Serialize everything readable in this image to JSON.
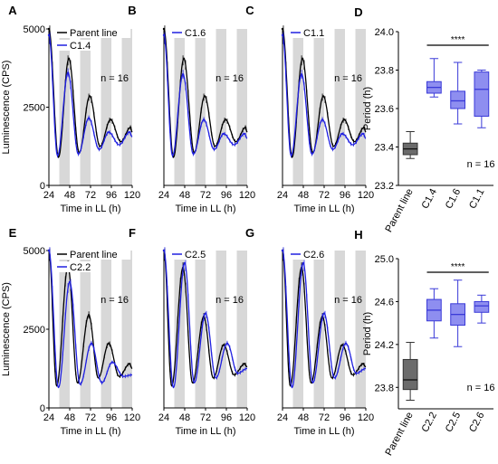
{
  "figure": {
    "colors": {
      "parent": "#000000",
      "clone": "#2020e0",
      "shade": "#d8d8d8",
      "box_gray": "#6b6b6b",
      "box_blue": "#8e8ef0",
      "box_blue_edge": "#3a3ad8"
    }
  },
  "chart_data": [
    {
      "type": "line",
      "panel": "A",
      "xlabel": "Time in LL (h)",
      "ylabel": "Luminescence (CPS)",
      "xlim": [
        24,
        120
      ],
      "ylim": [
        0,
        5000
      ],
      "xticks": [
        24,
        48,
        72,
        96,
        120
      ],
      "yticks": [
        0,
        2500,
        5000
      ],
      "legend": [
        "Parent line",
        "C1.4"
      ],
      "annotation": "n = 16",
      "series": [
        {
          "name": "Parent line",
          "peaks": [
            [
              24,
              5000
            ],
            [
              47,
              4050
            ],
            [
              71,
              2850
            ],
            [
              95,
              2100
            ],
            [
              118,
              1850
            ]
          ],
          "troughs": [
            [
              35,
              900
            ],
            [
              59,
              1050
            ],
            [
              83,
              1250
            ],
            [
              107,
              1400
            ]
          ],
          "end": [
            120,
            1700
          ]
        },
        {
          "name": "C1.4",
          "peaks": [
            [
              24,
              4800
            ],
            [
              46,
              3600
            ],
            [
              70,
              2150
            ],
            [
              93,
              1700
            ],
            [
              117,
              1700
            ]
          ],
          "troughs": [
            [
              34,
              950
            ],
            [
              58,
              1000
            ],
            [
              82,
              1150
            ],
            [
              105,
              1300
            ]
          ],
          "end": [
            120,
            1550
          ]
        }
      ]
    },
    {
      "type": "line",
      "panel": "B",
      "xlabel": "Time in LL (h)",
      "xlim": [
        24,
        120
      ],
      "ylim": [
        0,
        5000
      ],
      "xticks": [
        24,
        48,
        72,
        96,
        120
      ],
      "legend": [
        "C1.6"
      ],
      "annotation": "n = 16",
      "series": [
        {
          "name": "Parent line",
          "peaks": [
            [
              24,
              5000
            ],
            [
              47,
              4050
            ],
            [
              71,
              2850
            ],
            [
              95,
              2100
            ],
            [
              118,
              1850
            ]
          ],
          "troughs": [
            [
              35,
              900
            ],
            [
              59,
              1050
            ],
            [
              83,
              1250
            ],
            [
              107,
              1400
            ]
          ],
          "end": [
            120,
            1700
          ]
        },
        {
          "name": "C1.6",
          "peaks": [
            [
              24,
              4800
            ],
            [
              46,
              3550
            ],
            [
              70,
              2100
            ],
            [
              93,
              1650
            ],
            [
              117,
              1650
            ]
          ],
          "troughs": [
            [
              34,
              950
            ],
            [
              58,
              1000
            ],
            [
              82,
              1150
            ],
            [
              105,
              1300
            ]
          ],
          "end": [
            120,
            1500
          ]
        }
      ]
    },
    {
      "type": "line",
      "panel": "C",
      "xlabel": "Time in LL (h)",
      "xlim": [
        24,
        120
      ],
      "ylim": [
        0,
        5000
      ],
      "xticks": [
        24,
        48,
        72,
        96,
        120
      ],
      "legend": [
        "C1.1"
      ],
      "annotation": "n = 16",
      "series": [
        {
          "name": "Parent line",
          "peaks": [
            [
              24,
              5000
            ],
            [
              47,
              4050
            ],
            [
              71,
              2850
            ],
            [
              95,
              2100
            ],
            [
              118,
              1850
            ]
          ],
          "troughs": [
            [
              35,
              900
            ],
            [
              59,
              1050
            ],
            [
              83,
              1250
            ],
            [
              107,
              1400
            ]
          ],
          "end": [
            120,
            1700
          ]
        },
        {
          "name": "C1.1",
          "peaks": [
            [
              24,
              4800
            ],
            [
              46,
              3550
            ],
            [
              70,
              2100
            ],
            [
              93,
              1650
            ],
            [
              117,
              1650
            ]
          ],
          "troughs": [
            [
              34,
              950
            ],
            [
              58,
              1000
            ],
            [
              82,
              1150
            ],
            [
              105,
              1300
            ]
          ],
          "end": [
            120,
            1500
          ]
        }
      ]
    },
    {
      "type": "box",
      "panel": "D",
      "ylabel": "Period (h)",
      "ylim": [
        23.2,
        24.0
      ],
      "yticks": [
        23.2,
        23.4,
        23.6,
        23.8,
        24.0
      ],
      "categories": [
        "Parent line",
        "C1.4",
        "C1.6",
        "C1.1"
      ],
      "boxes": [
        {
          "min": 23.34,
          "q1": 23.36,
          "median": 23.39,
          "q3": 23.42,
          "max": 23.48
        },
        {
          "min": 23.66,
          "q1": 23.68,
          "median": 23.71,
          "q3": 23.74,
          "max": 23.86
        },
        {
          "min": 23.52,
          "q1": 23.6,
          "median": 23.64,
          "q3": 23.69,
          "max": 23.84
        },
        {
          "min": 23.5,
          "q1": 23.56,
          "median": 23.7,
          "q3": 23.79,
          "max": 23.8
        }
      ],
      "significance": "****",
      "annotation": "n = 16"
    },
    {
      "type": "line",
      "panel": "E",
      "xlabel": "Time in LL (h)",
      "ylabel": "Luminescence (CPS)",
      "xlim": [
        24,
        120
      ],
      "ylim": [
        0,
        5000
      ],
      "xticks": [
        24,
        48,
        72,
        96,
        120
      ],
      "yticks": [
        0,
        2500,
        5000
      ],
      "legend": [
        "Parent line",
        "C2.2"
      ],
      "annotation": "n = 16",
      "series": [
        {
          "name": "Parent line",
          "peaks": [
            [
              24,
              5000
            ],
            [
              46,
              4500
            ],
            [
              70,
              2950
            ],
            [
              93,
              2050
            ],
            [
              117,
              1400
            ]
          ],
          "troughs": [
            [
              33,
              700
            ],
            [
              57,
              800
            ],
            [
              81,
              950
            ],
            [
              105,
              1000
            ]
          ],
          "end": [
            120,
            1250
          ]
        },
        {
          "name": "C2.2",
          "peaks": [
            [
              24,
              5000
            ],
            [
              48,
              4000
            ],
            [
              73,
              2050
            ],
            [
              97,
              1450
            ]
          ],
          "troughs": [
            [
              35,
              650
            ],
            [
              60,
              750
            ],
            [
              85,
              800
            ],
            [
              110,
              1000
            ]
          ],
          "end": [
            120,
            1050
          ]
        }
      ]
    },
    {
      "type": "line",
      "panel": "F",
      "xlabel": "Time in LL (h)",
      "xlim": [
        24,
        120
      ],
      "ylim": [
        0,
        5000
      ],
      "xticks": [
        24,
        48,
        72,
        96,
        120
      ],
      "legend": [
        "C2.5"
      ],
      "annotation": "n = 16",
      "series": [
        {
          "name": "Parent line",
          "peaks": [
            [
              24,
              5000
            ],
            [
              46,
              4450
            ],
            [
              70,
              2900
            ],
            [
              93,
              2000
            ],
            [
              117,
              1400
            ]
          ],
          "troughs": [
            [
              33,
              700
            ],
            [
              57,
              800
            ],
            [
              81,
              950
            ],
            [
              105,
              1050
            ]
          ],
          "end": [
            120,
            1300
          ]
        },
        {
          "name": "C2.5",
          "peaks": [
            [
              24,
              5000
            ],
            [
              48,
              4600
            ],
            [
              72,
              3000
            ],
            [
              97,
              2050
            ]
          ],
          "troughs": [
            [
              35,
              650
            ],
            [
              59,
              800
            ],
            [
              84,
              950
            ],
            [
              109,
              1100
            ]
          ],
          "end": [
            120,
            1250
          ]
        }
      ]
    },
    {
      "type": "line",
      "panel": "G",
      "xlabel": "Time in LL (h)",
      "xlim": [
        24,
        120
      ],
      "ylim": [
        0,
        5000
      ],
      "xticks": [
        24,
        48,
        72,
        96,
        120
      ],
      "legend": [
        "C2.6"
      ],
      "annotation": "n = 16",
      "series": [
        {
          "name": "Parent line",
          "peaks": [
            [
              24,
              5000
            ],
            [
              46,
              4450
            ],
            [
              70,
              2900
            ],
            [
              93,
              2000
            ],
            [
              117,
              1400
            ]
          ],
          "troughs": [
            [
              33,
              700
            ],
            [
              57,
              800
            ],
            [
              81,
              950
            ],
            [
              105,
              1050
            ]
          ],
          "end": [
            120,
            1300
          ]
        },
        {
          "name": "C2.6",
          "peaks": [
            [
              24,
              5000
            ],
            [
              48,
              4600
            ],
            [
              72,
              3000
            ],
            [
              97,
              2050
            ]
          ],
          "troughs": [
            [
              35,
              650
            ],
            [
              59,
              800
            ],
            [
              84,
              950
            ],
            [
              109,
              1100
            ]
          ],
          "end": [
            120,
            1250
          ]
        }
      ]
    },
    {
      "type": "box",
      "panel": "H",
      "ylabel": "Period (h)",
      "ylim": [
        23.6,
        25.0
      ],
      "yticks": [
        23.8,
        24.2,
        24.6,
        25.0
      ],
      "categories": [
        "Parent line",
        "C2.2",
        "C2.5",
        "C2.6"
      ],
      "boxes": [
        {
          "min": 23.68,
          "q1": 23.78,
          "median": 23.87,
          "q3": 24.06,
          "max": 24.22
        },
        {
          "min": 24.26,
          "q1": 24.42,
          "median": 24.52,
          "q3": 24.62,
          "max": 24.72
        },
        {
          "min": 24.18,
          "q1": 24.38,
          "median": 24.48,
          "q3": 24.58,
          "max": 24.8
        },
        {
          "min": 24.4,
          "q1": 24.5,
          "median": 24.56,
          "q3": 24.6,
          "max": 24.66
        }
      ],
      "significance": "****",
      "annotation": "n = 16"
    }
  ]
}
